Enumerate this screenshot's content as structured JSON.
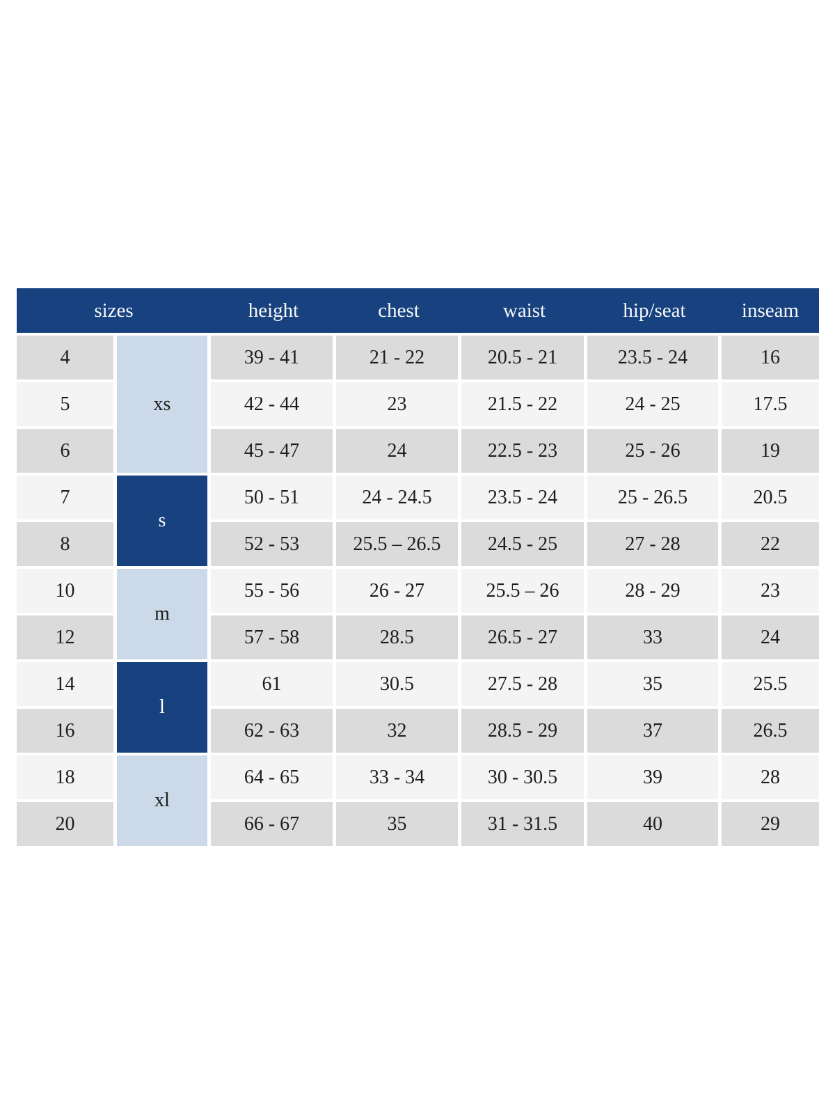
{
  "colors": {
    "header_blue": "#17427f",
    "group_dark_blue": "#17427f",
    "group_light_blue": "#ccd9e8",
    "row_gray": "#dbdbdb",
    "row_light": "#f4f4f4",
    "gap_white": "#ffffff",
    "text_dark": "#1d1d1b",
    "header_text": "#f7f7f9"
  },
  "chart_data": {
    "type": "table",
    "title": "",
    "header": {
      "sizes_label": "sizes",
      "columns": [
        "height",
        "chest",
        "waist",
        "hip/seat",
        "inseam"
      ]
    },
    "size_groups": [
      {
        "label": "xs",
        "style": "light",
        "rows": [
          {
            "size": "4",
            "height": "39 - 41",
            "chest": "21 - 22",
            "waist": "20.5 - 21",
            "hip": "23.5 - 24",
            "inseam": "16"
          },
          {
            "size": "5",
            "height": "42 - 44",
            "chest": "23",
            "waist": "21.5 - 22",
            "hip": "24 - 25",
            "inseam": "17.5"
          },
          {
            "size": "6",
            "height": "45 - 47",
            "chest": "24",
            "waist": "22.5 - 23",
            "hip": "25 - 26",
            "inseam": "19"
          }
        ]
      },
      {
        "label": "s",
        "style": "dark",
        "rows": [
          {
            "size": "7",
            "height": "50 - 51",
            "chest": "24 - 24.5",
            "waist": "23.5 - 24",
            "hip": "25 - 26.5",
            "inseam": "20.5"
          },
          {
            "size": "8",
            "height": "52 - 53",
            "chest": "25.5 – 26.5",
            "waist": "24.5 - 25",
            "hip": "27 - 28",
            "inseam": "22"
          }
        ]
      },
      {
        "label": "m",
        "style": "light",
        "rows": [
          {
            "size": "10",
            "height": "55 - 56",
            "chest": "26 - 27",
            "waist": "25.5 – 26",
            "hip": "28 - 29",
            "inseam": "23"
          },
          {
            "size": "12",
            "height": "57 - 58",
            "chest": "28.5",
            "waist": "26.5 - 27",
            "hip": "33",
            "inseam": "24"
          }
        ]
      },
      {
        "label": "l",
        "style": "dark",
        "rows": [
          {
            "size": "14",
            "height": "61",
            "chest": "30.5",
            "waist": "27.5 - 28",
            "hip": "35",
            "inseam": "25.5"
          },
          {
            "size": "16",
            "height": "62 - 63",
            "chest": "32",
            "waist": "28.5 - 29",
            "hip": "37",
            "inseam": "26.5"
          }
        ]
      },
      {
        "label": "xl",
        "style": "light",
        "rows": [
          {
            "size": "18",
            "height": "64 - 65",
            "chest": "33 - 34",
            "waist": "30 - 30.5",
            "hip": "39",
            "inseam": "28"
          },
          {
            "size": "20",
            "height": "66 - 67",
            "chest": "35",
            "waist": "31 - 31.5",
            "hip": "40",
            "inseam": "29"
          }
        ]
      }
    ]
  }
}
